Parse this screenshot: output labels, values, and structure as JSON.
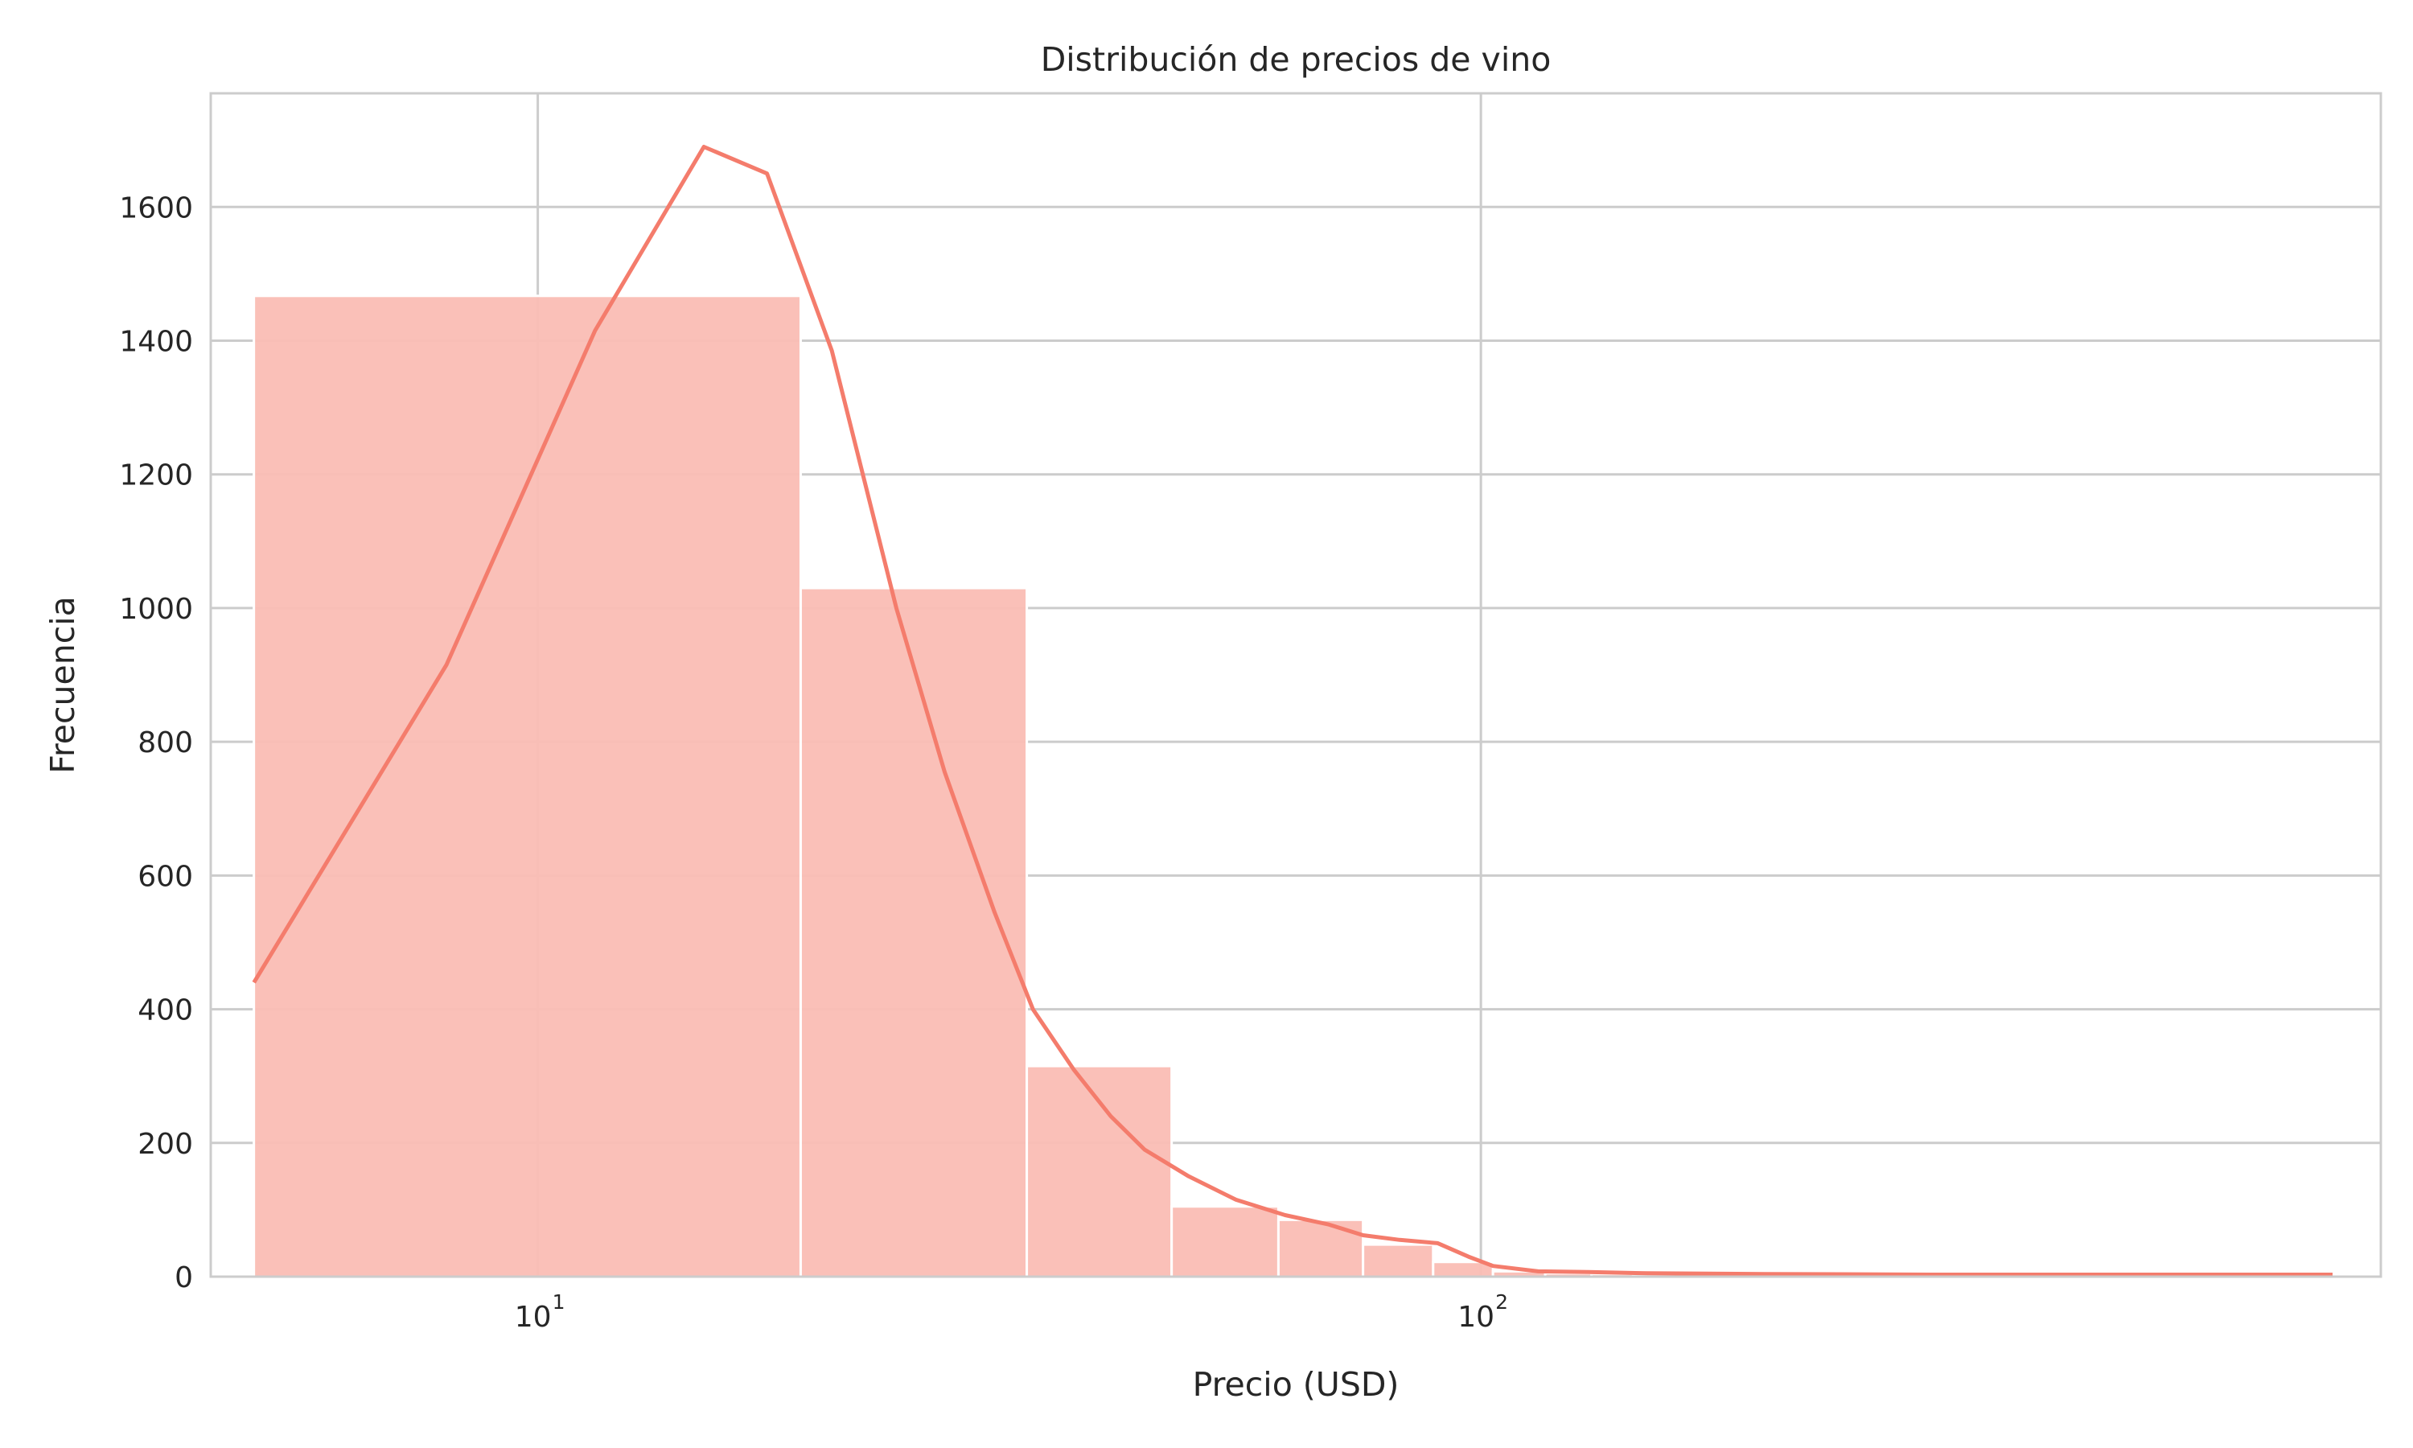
{
  "chart_data": {
    "type": "bar",
    "title": "Distribución de precios de vino",
    "xlabel": "Precio (USD)",
    "ylabel": "Frecuencia",
    "x_scale": "log",
    "xlim": [
      4.5,
      900
    ],
    "ylim": [
      0,
      1770
    ],
    "grid": true,
    "legend": "none",
    "bar_color": "#fabdb4",
    "line_color": "#f47c6c",
    "grid_color": "#cccccc",
    "yticks": [
      0,
      200,
      400,
      600,
      800,
      1000,
      1200,
      1400,
      1600
    ],
    "xticks": [
      {
        "base": "10",
        "exp": "1",
        "value": 10
      },
      {
        "base": "10",
        "exp": "2",
        "value": 100
      }
    ],
    "bins": [
      {
        "x0": 5.0,
        "x1": 19.0,
        "count": 1467
      },
      {
        "x0": 19.0,
        "x1": 33.0,
        "count": 1030
      },
      {
        "x0": 33.0,
        "x1": 47.0,
        "count": 315
      },
      {
        "x0": 47.0,
        "x1": 61.0,
        "count": 105
      },
      {
        "x0": 61.0,
        "x1": 75.0,
        "count": 85
      },
      {
        "x0": 75.0,
        "x1": 89.0,
        "count": 48
      },
      {
        "x0": 89.0,
        "x1": 103.0,
        "count": 22
      },
      {
        "x0": 103.0,
        "x1": 117.0,
        "count": 8
      },
      {
        "x0": 117.0,
        "x1": 131.0,
        "count": 5
      },
      {
        "x0": 131.0,
        "x1": 145.0,
        "count": 4
      },
      {
        "x0": 145.0,
        "x1": 159.0,
        "count": 3
      },
      {
        "x0": 159.0,
        "x1": 187.0,
        "count": 2
      },
      {
        "x0": 187.0,
        "x1": 215.0,
        "count": 2
      },
      {
        "x0": 215.0,
        "x1": 271.0,
        "count": 2
      },
      {
        "x0": 271.0,
        "x1": 355.0,
        "count": 1
      },
      {
        "x0": 355.0,
        "x1": 467.0,
        "count": 1
      },
      {
        "x0": 467.0,
        "x1": 635.0,
        "count": 1
      },
      {
        "x0": 635.0,
        "x1": 803.0,
        "count": 1
      }
    ],
    "kde": {
      "x": [
        5.0,
        8.0,
        11.5,
        15.0,
        17.5,
        20.5,
        24.0,
        27.0,
        30.5,
        33.5,
        37.0,
        40.5,
        44.0,
        49.0,
        55.0,
        62.0,
        69.0,
        75.0,
        82.0,
        90.0,
        97.0,
        103.0,
        115.0,
        130.0,
        150.0,
        200.0,
        300.0,
        500.0,
        800.0
      ],
      "y": [
        440,
        915,
        1415,
        1690,
        1650,
        1385,
        1000,
        755,
        545,
        400,
        310,
        240,
        190,
        150,
        115,
        92,
        78,
        62,
        55,
        50,
        30,
        16,
        8,
        7,
        5,
        4,
        3,
        3,
        3
      ]
    }
  }
}
